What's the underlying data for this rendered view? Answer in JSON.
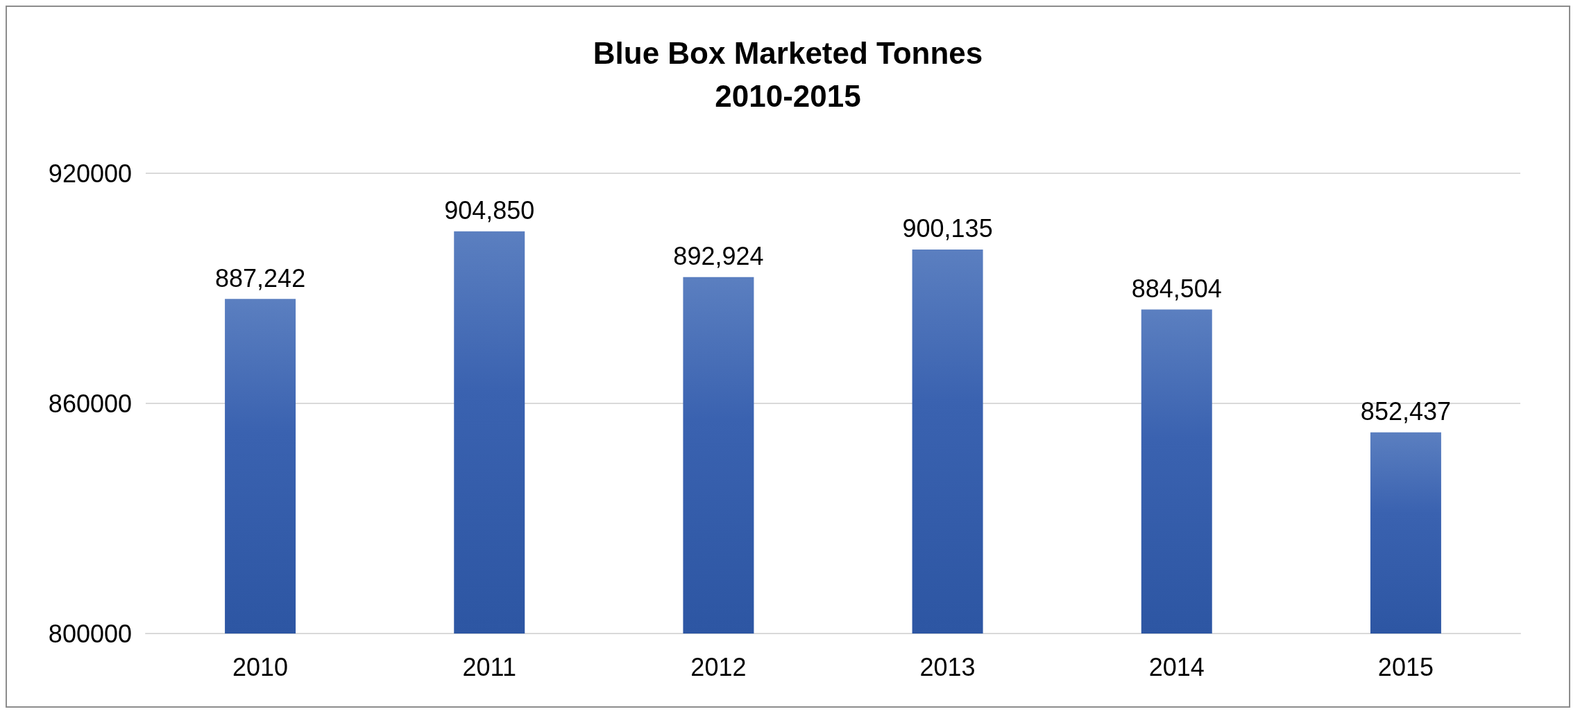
{
  "chart_data": {
    "type": "bar",
    "title": "Blue Box Marketed Tonnes\n2010-2015",
    "categories": [
      "2010",
      "2011",
      "2012",
      "2013",
      "2014",
      "2015"
    ],
    "values": [
      887242,
      904850,
      892924,
      900135,
      884504,
      852437
    ],
    "value_labels": [
      "887,242",
      "904,850",
      "892,924",
      "900,135",
      "884,504",
      "852,437"
    ],
    "color": "#3a62b0",
    "ylim": [
      800000,
      920000
    ],
    "yticks": [
      800000,
      860000,
      920000
    ],
    "grid": "y"
  }
}
